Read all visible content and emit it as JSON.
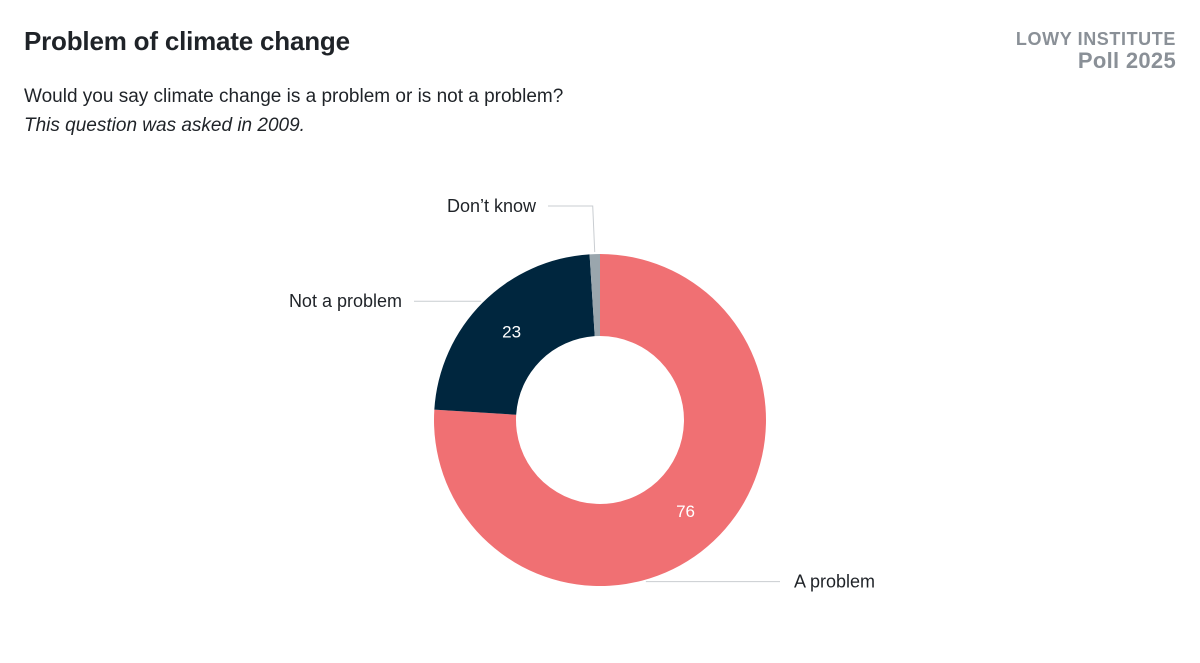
{
  "header": {
    "title": "Problem of climate change",
    "question": "Would you say climate change is a problem or is not a problem?",
    "note": "This question was asked in 2009."
  },
  "brand": {
    "name": "LOWY INSTITUTE",
    "poll": "Poll 2025"
  },
  "chart_data": {
    "type": "pie",
    "donut": true,
    "slices": [
      {
        "label": "A problem",
        "value": 76,
        "color": "#f07073",
        "value_label": "76"
      },
      {
        "label": "Not a problem",
        "value": 23,
        "color": "#00263e",
        "value_label": "23"
      },
      {
        "label": "Don’t know",
        "value": 1,
        "color": "#9aa6ad",
        "value_label": ""
      }
    ],
    "legend": "none"
  }
}
